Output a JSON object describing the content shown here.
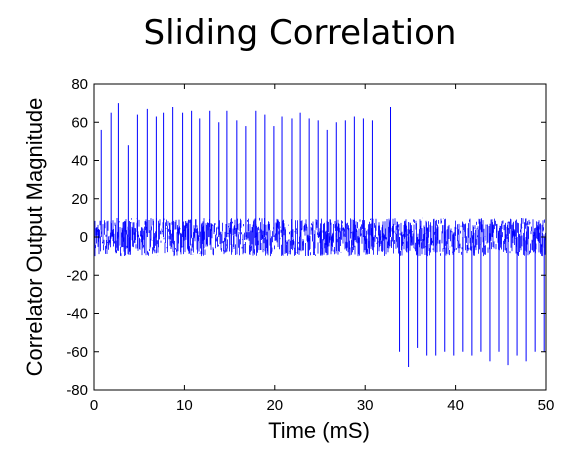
{
  "chart_data": {
    "type": "line",
    "title": "Sliding Correlation",
    "xlabel": "Time (mS)",
    "ylabel": "Correlator Output Magnitude",
    "xlim": [
      0,
      50
    ],
    "ylim": [
      -80,
      80
    ],
    "x_ticks": [
      "0",
      "10",
      "20",
      "30",
      "40",
      "50"
    ],
    "y_ticks": [
      "80",
      "60",
      "40",
      "20",
      "0",
      "-20",
      "-40",
      "-60",
      "-80"
    ],
    "grid": false,
    "line_color": "#0000ff",
    "series": [
      {
        "noise_band": [
          -10,
          10
        ],
        "peaks": [
          {
            "x": 0.8,
            "y": 56
          },
          {
            "x": 1.9,
            "y": 65
          },
          {
            "x": 2.7,
            "y": 70
          },
          {
            "x": 3.8,
            "y": 48
          },
          {
            "x": 4.8,
            "y": 64
          },
          {
            "x": 5.9,
            "y": 67
          },
          {
            "x": 6.9,
            "y": 63
          },
          {
            "x": 7.7,
            "y": 65
          },
          {
            "x": 8.7,
            "y": 68
          },
          {
            "x": 9.8,
            "y": 65
          },
          {
            "x": 10.8,
            "y": 66
          },
          {
            "x": 11.7,
            "y": 62
          },
          {
            "x": 12.8,
            "y": 66
          },
          {
            "x": 13.8,
            "y": 60
          },
          {
            "x": 14.7,
            "y": 66
          },
          {
            "x": 15.8,
            "y": 61
          },
          {
            "x": 16.8,
            "y": 58
          },
          {
            "x": 17.9,
            "y": 66
          },
          {
            "x": 18.9,
            "y": 64
          },
          {
            "x": 19.9,
            "y": 58
          },
          {
            "x": 20.8,
            "y": 63
          },
          {
            "x": 21.9,
            "y": 62
          },
          {
            "x": 22.8,
            "y": 65
          },
          {
            "x": 23.8,
            "y": 62
          },
          {
            "x": 24.8,
            "y": 61
          },
          {
            "x": 25.8,
            "y": 56
          },
          {
            "x": 26.8,
            "y": 60
          },
          {
            "x": 27.8,
            "y": 61
          },
          {
            "x": 28.8,
            "y": 63
          },
          {
            "x": 29.8,
            "y": 62
          },
          {
            "x": 30.8,
            "y": 61
          },
          {
            "x": 32.8,
            "y": 68
          },
          {
            "x": 33.8,
            "y": -60
          },
          {
            "x": 34.8,
            "y": -68
          },
          {
            "x": 35.8,
            "y": -58
          },
          {
            "x": 36.8,
            "y": -62
          },
          {
            "x": 37.8,
            "y": -62
          },
          {
            "x": 38.8,
            "y": -60
          },
          {
            "x": 39.8,
            "y": -62
          },
          {
            "x": 40.8,
            "y": -60
          },
          {
            "x": 41.8,
            "y": -62
          },
          {
            "x": 42.8,
            "y": -60
          },
          {
            "x": 43.8,
            "y": -65
          },
          {
            "x": 44.8,
            "y": -60
          },
          {
            "x": 45.8,
            "y": -67
          },
          {
            "x": 46.8,
            "y": -62
          },
          {
            "x": 47.8,
            "y": -65
          },
          {
            "x": 48.8,
            "y": -60
          },
          {
            "x": 49.8,
            "y": -60
          }
        ]
      }
    ]
  }
}
